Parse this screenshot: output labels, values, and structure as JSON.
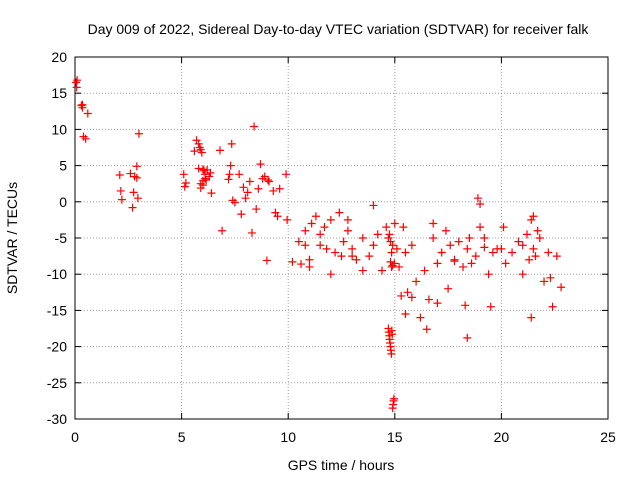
{
  "chart_data": {
    "type": "scatter",
    "title": "Day 009 of 2022, Sidereal Day-to-day VTEC variation (SDTVAR) for receiver falk",
    "xlabel": "GPS time / hours",
    "ylabel": "SDTVAR / TECUs",
    "xlim": [
      0,
      25
    ],
    "ylim": [
      -30,
      20
    ],
    "xticks": [
      0,
      5,
      10,
      15,
      20,
      25
    ],
    "yticks": [
      -30,
      -25,
      -20,
      -15,
      -10,
      -5,
      0,
      5,
      10,
      15,
      20
    ],
    "xtick_labels": [
      "0",
      "5",
      "10",
      "15",
      "20",
      "25"
    ],
    "ytick_labels": [
      "-30",
      "-25",
      "-20",
      "-15",
      "-10",
      "-5",
      "0",
      "5",
      "10",
      "15",
      "20"
    ],
    "grid": true,
    "marker": "+",
    "color": "#ff0000",
    "series": [
      {
        "name": "SDTVAR",
        "x": [
          0.05,
          0.08,
          0.1,
          0.3,
          0.35,
          0.4,
          0.5,
          0.6,
          0.35,
          2.1,
          2.15,
          2.2,
          2.6,
          2.7,
          2.75,
          2.8,
          2.9,
          2.95,
          3.0,
          2.9,
          5.1,
          5.15,
          5.2,
          5.6,
          5.7,
          5.8,
          5.85,
          5.9,
          5.95,
          6.0,
          6.05,
          6.1,
          6.15,
          5.9,
          6.0,
          6.1,
          5.8,
          5.9,
          6.0,
          6.2,
          6.3,
          6.35,
          6.4,
          6.8,
          6.9,
          7.2,
          7.25,
          7.3,
          7.35,
          7.4,
          7.5,
          7.7,
          7.8,
          7.9,
          8.0,
          8.1,
          8.2,
          8.3,
          8.4,
          8.5,
          8.6,
          8.7,
          8.8,
          8.9,
          9.0,
          9.05,
          9.1,
          9.3,
          9.4,
          9.5,
          9.6,
          9.9,
          9.95,
          10.5,
          10.6,
          10.8,
          11.0,
          11.1,
          11.3,
          11.5,
          11.7,
          11.8,
          12.0,
          12.2,
          12.4,
          12.6,
          12.8,
          13.0,
          13.2,
          13.5,
          13.8,
          14.0,
          14.2,
          14.4,
          14.6,
          14.7,
          14.72,
          14.74,
          14.76,
          14.78,
          14.8,
          14.82,
          14.84,
          14.86,
          14.88,
          14.9,
          14.92,
          14.94,
          14.96,
          14.98,
          14.7,
          14.8,
          14.9,
          14.75,
          14.85,
          14.8,
          14.9,
          14.85,
          15.0,
          15.1,
          15.2,
          15.3,
          15.4,
          15.5,
          15.6,
          15.8,
          16.0,
          16.2,
          16.4,
          16.6,
          16.8,
          17.0,
          17.2,
          17.4,
          17.6,
          17.8,
          18.0,
          18.2,
          18.4,
          18.6,
          18.8,
          19.0,
          19.2,
          19.4,
          19.6,
          19.8,
          18.3,
          18.4,
          19.5,
          18.9,
          19.0,
          20.0,
          20.2,
          20.5,
          20.8,
          21.0,
          21.2,
          21.4,
          21.5,
          21.3,
          21.6,
          21.8,
          22.0,
          22.2,
          22.4,
          22.6,
          22.8,
          21.4,
          21.5,
          21.7,
          22.3,
          16.5,
          17.0,
          17.5,
          16.8,
          15.5,
          15.8,
          14.0,
          13.5,
          12.5,
          12.0,
          11.0,
          10.2,
          10.8,
          11.5,
          12.8,
          13.0,
          17.8,
          18.5,
          19.2,
          20.1,
          21.0
        ],
        "y": [
          16.5,
          15.8,
          16.8,
          13.3,
          13.0,
          9.0,
          8.7,
          12.2,
          13.4,
          3.7,
          1.5,
          0.3,
          3.9,
          -0.8,
          1.3,
          3.5,
          4.9,
          0.5,
          9.4,
          3.3,
          3.8,
          2.1,
          2.6,
          7.0,
          8.5,
          8.0,
          7.5,
          7.2,
          6.8,
          4.5,
          4.3,
          3.8,
          3.0,
          2.5,
          2.9,
          3.2,
          4.6,
          1.9,
          2.3,
          4.4,
          3.5,
          4.0,
          1.2,
          7.1,
          -4.0,
          3.1,
          3.8,
          5.0,
          8.0,
          0.2,
          -0.1,
          3.8,
          -1.7,
          2.0,
          0.5,
          1.3,
          2.8,
          -4.3,
          10.4,
          -1.0,
          1.8,
          5.2,
          3.2,
          3.5,
          -8.1,
          3.0,
          2.8,
          1.5,
          -1.5,
          -2.0,
          1.8,
          3.8,
          -2.5,
          -5.5,
          -8.6,
          -6.0,
          -8.0,
          -3.0,
          -2.0,
          -4.5,
          -3.5,
          -6.5,
          -2.5,
          -7.0,
          -1.5,
          -5.5,
          -4.0,
          -6.5,
          -8.0,
          -5.0,
          -7.5,
          -6.0,
          -4.5,
          -9.5,
          -3.5,
          -17.5,
          -18.0,
          -18.5,
          -19.0,
          -19.5,
          -20.0,
          -20.5,
          -21.0,
          -17.8,
          -18.3,
          -28.5,
          -28.0,
          -27.5,
          -27.2,
          -8.5,
          -5.0,
          -5.5,
          -6.0,
          -4.5,
          -7.0,
          -8.3,
          -8.8,
          -9.0,
          -3.0,
          -6.5,
          -9.0,
          -13.0,
          -3.5,
          -7.0,
          -12.5,
          -6.0,
          -11.0,
          -16.0,
          -9.5,
          -13.5,
          -5.0,
          -8.5,
          -7.0,
          -4.0,
          -6.0,
          -8.0,
          -5.5,
          -9.0,
          -6.5,
          -8.5,
          -7.5,
          -3.5,
          -5.0,
          -10.0,
          -7.0,
          -6.5,
          -14.3,
          -18.8,
          -14.5,
          0.5,
          -0.3,
          -6.5,
          -8.5,
          -7.0,
          -5.5,
          -10.0,
          -4.5,
          -16.0,
          -2.0,
          -8.0,
          -7.5,
          -5.0,
          -11.0,
          -7.0,
          -14.5,
          -7.5,
          -11.8,
          -2.5,
          -6.5,
          -4.0,
          -10.5,
          -17.6,
          -14.0,
          -12.0,
          -3.0,
          -15.5,
          -13.2,
          -0.5,
          -9.5,
          -7.5,
          -10.0,
          -9.0,
          -8.3,
          -4.0,
          -6.0,
          -2.5,
          -7.5,
          -8.2,
          -5.0,
          -6.3,
          -3.5,
          -6.0
        ]
      }
    ]
  }
}
